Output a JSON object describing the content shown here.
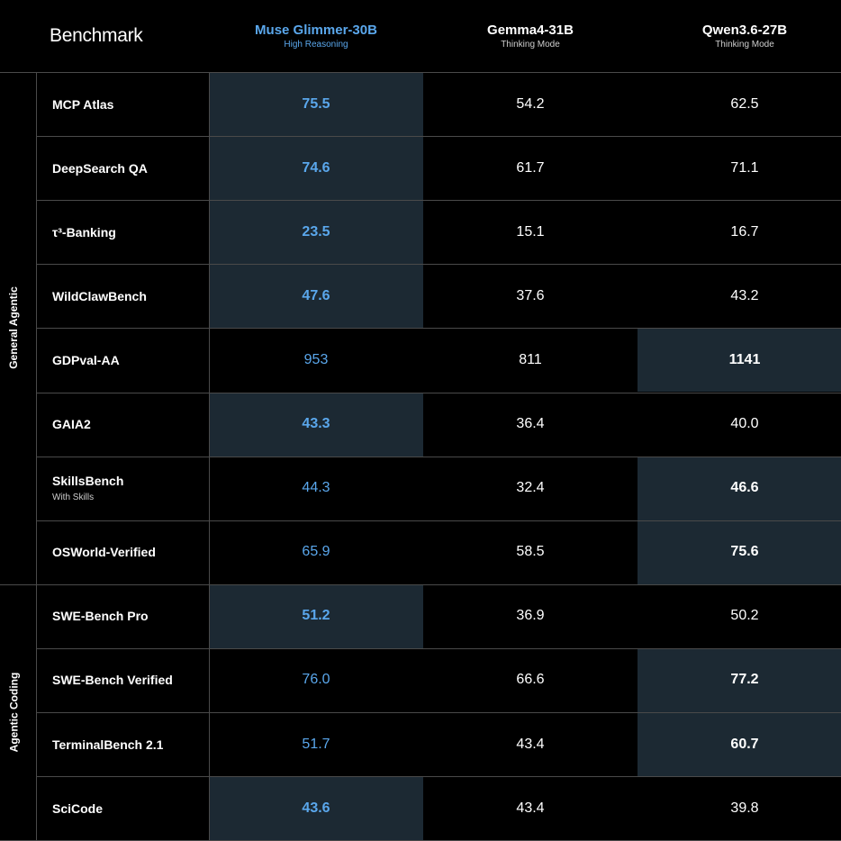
{
  "header": {
    "title": "Benchmark"
  },
  "columns": [
    {
      "name": "Muse Glimmer-30B",
      "subtitle": "High Reasoning",
      "color": "#5aa7ec"
    },
    {
      "name": "Gemma4-31B",
      "subtitle": "Thinking Mode",
      "color": "#ffffff"
    },
    {
      "name": "Qwen3.6-27B",
      "subtitle": "Thinking Mode",
      "color": "#ffffff"
    }
  ],
  "groups": [
    {
      "label": "General Agentic",
      "rows": 8
    },
    {
      "label": "Agentic Coding",
      "rows": 4
    }
  ],
  "colors": {
    "background": "#000000",
    "highlight_cell": "#1c2933",
    "muse_accent": "#5aa7ec",
    "grid_line": "#4a4a4a"
  },
  "chart_data": {
    "type": "table",
    "title": "Benchmark",
    "columns": [
      "Muse Glimmer-30B",
      "Gemma4-31B",
      "Qwen3.6-27B"
    ],
    "rows": [
      {
        "benchmark": "MCP Atlas",
        "subtitle": "",
        "values": [
          "75.5",
          "54.2",
          "62.5"
        ],
        "best": 0
      },
      {
        "benchmark": "DeepSearch QA",
        "subtitle": "",
        "values": [
          "74.6",
          "61.7",
          "71.1"
        ],
        "best": 0
      },
      {
        "benchmark": "τ³-Banking",
        "subtitle": "",
        "values": [
          "23.5",
          "15.1",
          "16.7"
        ],
        "best": 0
      },
      {
        "benchmark": "WildClawBench",
        "subtitle": "",
        "values": [
          "47.6",
          "37.6",
          "43.2"
        ],
        "best": 0
      },
      {
        "benchmark": "GDPval-AA",
        "subtitle": "",
        "values": [
          "953",
          "811",
          "1141"
        ],
        "best": 2
      },
      {
        "benchmark": "GAIA2",
        "subtitle": "",
        "values": [
          "43.3",
          "36.4",
          "40.0"
        ],
        "best": 0
      },
      {
        "benchmark": "SkillsBench",
        "subtitle": "With Skills",
        "values": [
          "44.3",
          "32.4",
          "46.6"
        ],
        "best": 2
      },
      {
        "benchmark": "OSWorld-Verified",
        "subtitle": "",
        "values": [
          "65.9",
          "58.5",
          "75.6"
        ],
        "best": 2
      },
      {
        "benchmark": "SWE-Bench Pro",
        "subtitle": "",
        "values": [
          "51.2",
          "36.9",
          "50.2"
        ],
        "best": 0
      },
      {
        "benchmark": "SWE-Bench Verified",
        "subtitle": "",
        "values": [
          "76.0",
          "66.6",
          "77.2"
        ],
        "best": 2
      },
      {
        "benchmark": "TerminalBench 2.1",
        "subtitle": "",
        "values": [
          "51.7",
          "43.4",
          "60.7"
        ],
        "best": 2
      },
      {
        "benchmark": "SciCode",
        "subtitle": "",
        "values": [
          "43.6",
          "43.4",
          "39.8"
        ],
        "best": 0
      }
    ]
  }
}
